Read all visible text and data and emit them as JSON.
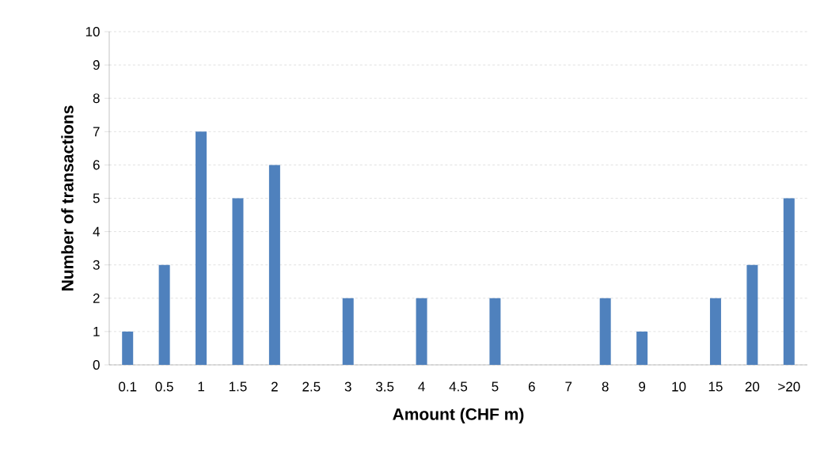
{
  "chart_data": {
    "type": "bar",
    "xlabel": "Amount (CHF m)",
    "ylabel": "Number of transactions",
    "categories": [
      "0.1",
      "0.5",
      "1",
      "1.5",
      "2",
      "2.5",
      "3",
      "3.5",
      "4",
      "4.5",
      "5",
      "6",
      "7",
      "8",
      "9",
      "10",
      "15",
      "20",
      ">20"
    ],
    "values": [
      1,
      3,
      7,
      5,
      6,
      0,
      2,
      0,
      2,
      0,
      2,
      0,
      0,
      2,
      1,
      0,
      2,
      3,
      5
    ],
    "color": "#4f81bd",
    "ylim": [
      0,
      10
    ],
    "yticks": [
      0,
      1,
      2,
      3,
      4,
      5,
      6,
      7,
      8,
      9,
      10
    ],
    "grid": "y"
  }
}
